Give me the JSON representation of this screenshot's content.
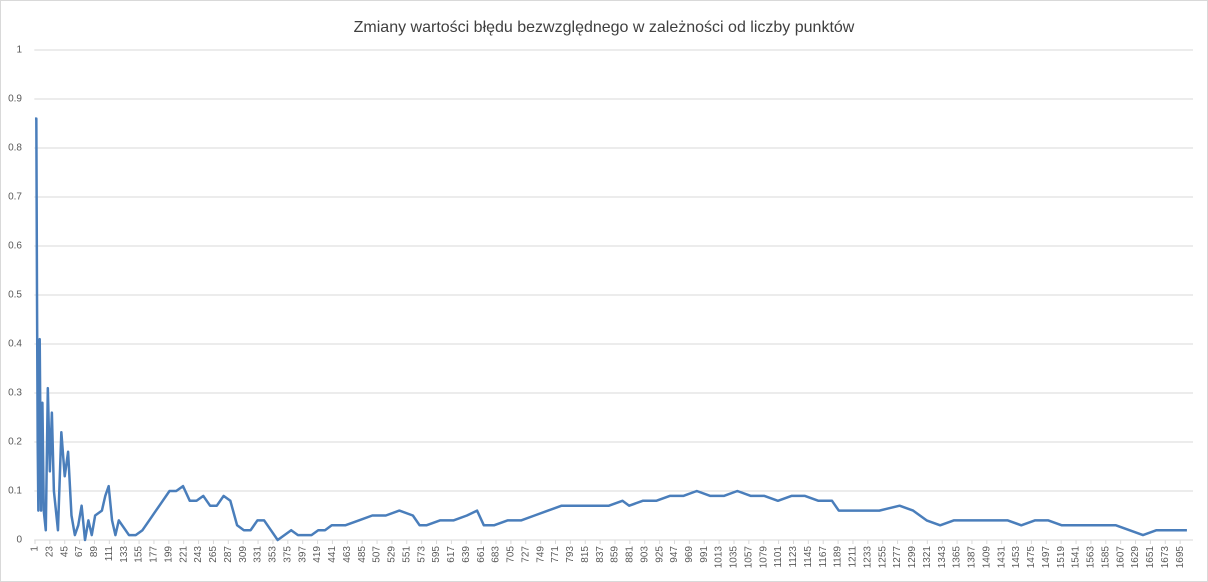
{
  "chart_data": {
    "type": "line",
    "title": "Zmiany wartości błędu bezwzględnego w zależności od liczby punktów",
    "x": [
      1,
      3,
      4,
      5,
      6,
      8,
      10,
      12,
      14,
      17,
      20,
      23,
      26,
      29,
      32,
      35,
      40,
      45,
      50,
      55,
      60,
      65,
      70,
      75,
      80,
      85,
      90,
      100,
      105,
      110,
      115,
      120,
      125,
      130,
      140,
      150,
      160,
      170,
      180,
      190,
      200,
      210,
      220,
      230,
      240,
      250,
      260,
      270,
      280,
      290,
      300,
      310,
      320,
      330,
      340,
      350,
      360,
      370,
      380,
      390,
      400,
      410,
      420,
      430,
      440,
      460,
      480,
      500,
      520,
      540,
      560,
      570,
      580,
      600,
      620,
      640,
      655,
      665,
      680,
      700,
      720,
      740,
      760,
      780,
      800,
      820,
      850,
      870,
      880,
      900,
      920,
      940,
      960,
      980,
      1000,
      1020,
      1040,
      1060,
      1080,
      1100,
      1120,
      1140,
      1160,
      1180,
      1190,
      1210,
      1230,
      1250,
      1280,
      1300,
      1320,
      1340,
      1360,
      1380,
      1400,
      1420,
      1440,
      1460,
      1480,
      1500,
      1520,
      1540,
      1560,
      1580,
      1600,
      1620,
      1640,
      1660,
      1680,
      1705
    ],
    "values": [
      0.86,
      0.86,
      0.5,
      0.2,
      0.06,
      0.41,
      0.06,
      0.28,
      0.06,
      0.02,
      0.31,
      0.14,
      0.26,
      0.1,
      0.06,
      0.02,
      0.22,
      0.13,
      0.18,
      0.05,
      0.01,
      0.03,
      0.07,
      0.0,
      0.04,
      0.01,
      0.05,
      0.06,
      0.09,
      0.11,
      0.04,
      0.01,
      0.04,
      0.03,
      0.01,
      0.01,
      0.02,
      0.04,
      0.06,
      0.08,
      0.1,
      0.1,
      0.11,
      0.08,
      0.08,
      0.09,
      0.07,
      0.07,
      0.09,
      0.08,
      0.03,
      0.02,
      0.02,
      0.04,
      0.04,
      0.02,
      0.0,
      0.01,
      0.02,
      0.01,
      0.01,
      0.01,
      0.02,
      0.02,
      0.03,
      0.03,
      0.04,
      0.05,
      0.05,
      0.06,
      0.05,
      0.03,
      0.03,
      0.04,
      0.04,
      0.05,
      0.06,
      0.03,
      0.03,
      0.04,
      0.04,
      0.05,
      0.06,
      0.07,
      0.07,
      0.07,
      0.07,
      0.08,
      0.07,
      0.08,
      0.08,
      0.09,
      0.09,
      0.1,
      0.09,
      0.09,
      0.1,
      0.09,
      0.09,
      0.08,
      0.09,
      0.09,
      0.08,
      0.08,
      0.06,
      0.06,
      0.06,
      0.06,
      0.07,
      0.06,
      0.04,
      0.03,
      0.04,
      0.04,
      0.04,
      0.04,
      0.04,
      0.03,
      0.04,
      0.04,
      0.03,
      0.03,
      0.03,
      0.03,
      0.03,
      0.02,
      0.01,
      0.02,
      0.02,
      0.02
    ],
    "color": "#4a7ebb",
    "xlim": [
      0,
      1714
    ],
    "xticks": [
      1,
      23,
      45,
      67,
      89,
      111,
      133,
      155,
      177,
      199,
      221,
      243,
      265,
      287,
      309,
      331,
      353,
      375,
      397,
      419,
      441,
      463,
      485,
      507,
      529,
      551,
      573,
      595,
      617,
      639,
      661,
      683,
      705,
      727,
      749,
      771,
      793,
      815,
      837,
      859,
      881,
      903,
      925,
      947,
      969,
      991,
      1013,
      1035,
      1057,
      1079,
      1101,
      1123,
      1145,
      1167,
      1189,
      1211,
      1233,
      1255,
      1277,
      1299,
      1321,
      1343,
      1365,
      1387,
      1409,
      1431,
      1453,
      1475,
      1497,
      1519,
      1541,
      1563,
      1585,
      1607,
      1629,
      1651,
      1673,
      1695
    ],
    "ylim": [
      0,
      1
    ],
    "yticks": [
      0,
      0.1,
      0.2,
      0.3,
      0.4,
      0.5,
      0.6,
      0.7,
      0.8,
      0.9,
      1
    ],
    "grid": true
  }
}
